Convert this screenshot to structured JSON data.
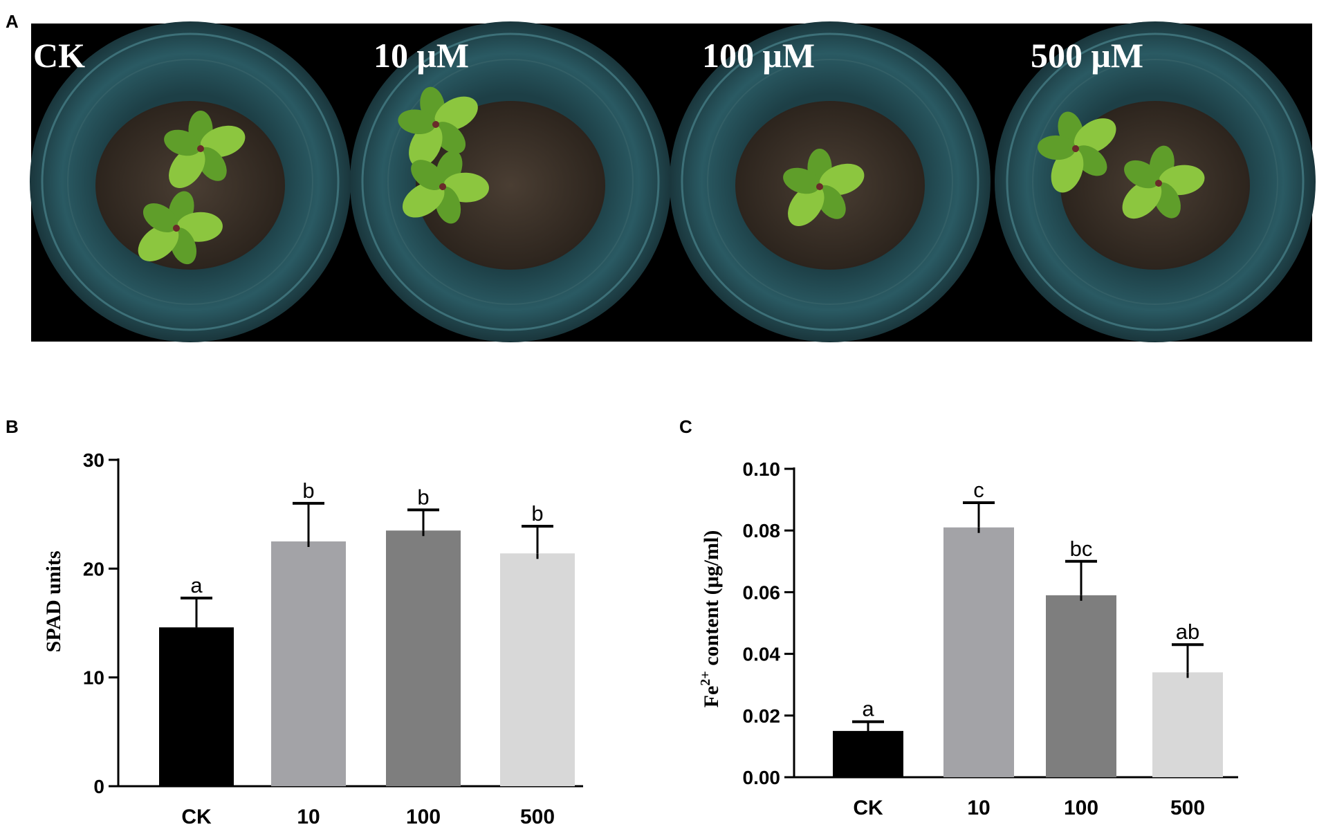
{
  "panel_a": {
    "letter": "A",
    "labels": [
      "CK",
      "10 μM",
      "100 μM",
      "500 μM"
    ],
    "colors": {
      "background": "#000000",
      "pot": "#25535c",
      "soil": "#3b3128",
      "leaf": "#6fae2f"
    }
  },
  "chart_data": [
    {
      "panel": "B",
      "type": "bar",
      "title": "",
      "xlabel": "",
      "ylabel": "SPAD units",
      "categories": [
        "CK",
        "10",
        "100",
        "500"
      ],
      "values": [
        14.6,
        22.5,
        23.5,
        21.4
      ],
      "errors": [
        2.7,
        3.5,
        1.9,
        2.5
      ],
      "significance": [
        "a",
        "b",
        "b",
        "b"
      ],
      "bar_colors": [
        "#000000",
        "#a3a3a7",
        "#7e7e7e",
        "#d8d8d8"
      ],
      "ylim": [
        0,
        30
      ],
      "yticks": [
        "0",
        "10",
        "20",
        "30"
      ],
      "grid": false
    },
    {
      "panel": "C",
      "type": "bar",
      "title": "",
      "xlabel": "",
      "ylabel_main": "Fe",
      "ylabel_sup": "2+",
      "ylabel_rest": " content (μg/ml)",
      "categories": [
        "CK",
        "10",
        "100",
        "500"
      ],
      "values": [
        0.015,
        0.081,
        0.059,
        0.034
      ],
      "errors": [
        0.003,
        0.008,
        0.011,
        0.009
      ],
      "significance": [
        "a",
        "c",
        "bc",
        "ab"
      ],
      "bar_colors": [
        "#000000",
        "#a3a3a7",
        "#7e7e7e",
        "#d8d8d8"
      ],
      "ylim": [
        0,
        0.1
      ],
      "yticks": [
        "0.00",
        "0.02",
        "0.04",
        "0.06",
        "0.08",
        "0.10"
      ],
      "grid": false
    }
  ]
}
